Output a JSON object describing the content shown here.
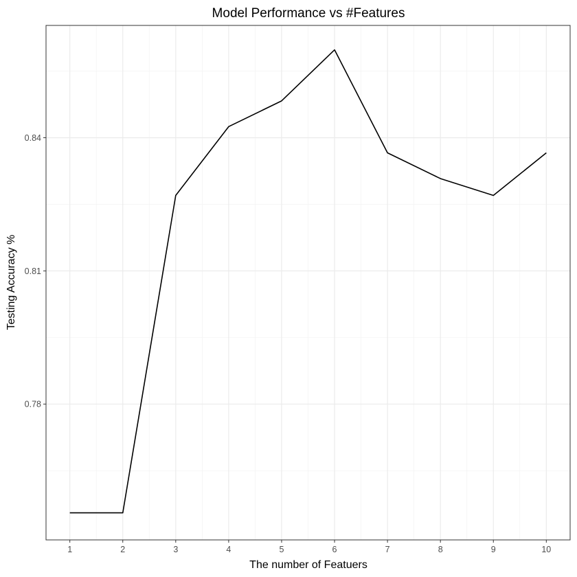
{
  "chart_data": {
    "type": "line",
    "title": "Model Performance vs #Features",
    "xlabel": "The number of Featuers",
    "ylabel": "Testing Accuracy %",
    "x": [
      1,
      2,
      3,
      4,
      5,
      6,
      7,
      8,
      9,
      10
    ],
    "series": [
      {
        "values": [
          0.7555,
          0.7555,
          0.827,
          0.8425,
          0.8483,
          0.8598,
          0.8366,
          0.8308,
          0.827,
          0.8366
        ]
      }
    ],
    "xlim": [
      0.55,
      10.45
    ],
    "ylim": [
      0.7494,
      0.8653
    ],
    "x_ticks": [
      1,
      2,
      3,
      4,
      5,
      6,
      7,
      8,
      9,
      10
    ],
    "x_tick_labels": [
      "1",
      "2",
      "3",
      "4",
      "5",
      "6",
      "7",
      "8",
      "9",
      "10"
    ],
    "y_ticks": [
      0.78,
      0.81,
      0.84
    ],
    "y_tick_labels": [
      "0.78",
      "0.81",
      "0.84"
    ],
    "y_minor_ticks": [
      0.765,
      0.795,
      0.825,
      0.855
    ],
    "grid": true,
    "legend": "none",
    "line_color": "#000000"
  }
}
